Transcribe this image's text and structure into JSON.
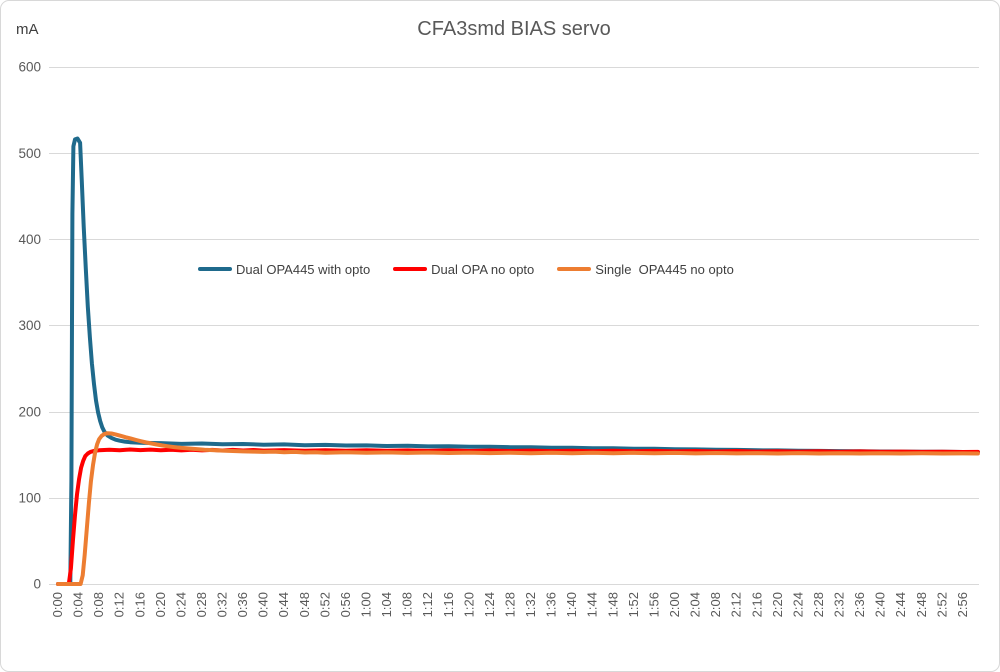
{
  "chart_data": {
    "type": "line",
    "title": "CFA3smd BIAS servo",
    "xlabel": "",
    "ylabel": "mA",
    "ylim": [
      0,
      600
    ],
    "y_ticks": [
      0,
      100,
      200,
      300,
      400,
      500,
      600
    ],
    "x_tick_interval_seconds": 4,
    "x_tick_labels": [
      "0:00",
      "0:04",
      "0:08",
      "0:12",
      "0:16",
      "0:20",
      "0:24",
      "0:28",
      "0:32",
      "0:36",
      "0:40",
      "0:44",
      "0:48",
      "0:52",
      "0:56",
      "1:00",
      "1:04",
      "1:08",
      "1:12",
      "1:16",
      "1:20",
      "1:24",
      "1:28",
      "1:32",
      "1:36",
      "1:40",
      "1:44",
      "1:48",
      "1:52",
      "1:56",
      "2:00",
      "2:04",
      "2:08",
      "2:12",
      "2:16",
      "2:20",
      "2:24",
      "2:28",
      "2:32",
      "2:36",
      "2:40",
      "2:44",
      "2:48",
      "2:52",
      "2:56"
    ],
    "grid": "horizontal",
    "legend_position": "inside-top-center",
    "series": [
      {
        "name": "Dual OPA445 with opto",
        "color": "#1f6a8c",
        "points": [
          [
            0,
            0
          ],
          [
            1,
            0
          ],
          [
            2,
            0
          ],
          [
            2.4,
            0
          ],
          [
            2.6,
            120
          ],
          [
            2.8,
            430
          ],
          [
            3,
            508
          ],
          [
            3.3,
            516
          ],
          [
            3.8,
            517
          ],
          [
            4.3,
            512
          ],
          [
            4.6,
            470
          ],
          [
            5,
            415
          ],
          [
            5.4,
            366
          ],
          [
            5.8,
            322
          ],
          [
            6.2,
            286
          ],
          [
            6.6,
            256
          ],
          [
            7,
            232
          ],
          [
            7.4,
            213
          ],
          [
            7.8,
            199
          ],
          [
            8.2,
            189
          ],
          [
            8.6,
            182
          ],
          [
            9,
            177
          ],
          [
            9.6,
            172.5
          ],
          [
            10.4,
            169.5
          ],
          [
            11.2,
            167.5
          ],
          [
            12,
            166.3
          ],
          [
            13,
            165.3
          ],
          [
            14,
            164.6
          ],
          [
            16,
            164
          ],
          [
            18,
            163.6
          ],
          [
            20,
            163.5
          ],
          [
            24,
            162.6
          ],
          [
            28,
            163.1
          ],
          [
            32,
            162.2
          ],
          [
            36,
            162.5
          ],
          [
            40,
            161.6
          ],
          [
            44,
            162
          ],
          [
            48,
            161.1
          ],
          [
            52,
            161.4
          ],
          [
            56,
            160.7
          ],
          [
            60,
            160.9
          ],
          [
            64,
            160.2
          ],
          [
            68,
            160.4
          ],
          [
            72,
            159.7
          ],
          [
            76,
            159.9
          ],
          [
            80,
            159.2
          ],
          [
            84,
            159.3
          ],
          [
            88,
            158.7
          ],
          [
            92,
            158.8
          ],
          [
            96,
            158.2
          ],
          [
            100,
            158.1
          ],
          [
            104,
            157.6
          ],
          [
            108,
            157.5
          ],
          [
            112,
            157
          ],
          [
            116,
            156.9
          ],
          [
            120,
            156.4
          ],
          [
            124,
            156.2
          ],
          [
            128,
            155.8
          ],
          [
            132,
            155.6
          ],
          [
            136,
            155.2
          ],
          [
            140,
            155
          ],
          [
            144,
            154.7
          ],
          [
            148,
            154.5
          ],
          [
            152,
            154.2
          ],
          [
            156,
            154.1
          ],
          [
            160,
            153.8
          ],
          [
            164,
            153.7
          ],
          [
            168,
            153.5
          ],
          [
            172,
            153.4
          ],
          [
            176,
            153.2
          ],
          [
            178.9,
            153.2
          ]
        ]
      },
      {
        "name": "Dual OPA no opto",
        "color": "#ff0000",
        "points": [
          [
            0,
            0
          ],
          [
            1,
            0
          ],
          [
            2.1,
            0
          ],
          [
            2.5,
            18
          ],
          [
            2.9,
            50
          ],
          [
            3.3,
            80
          ],
          [
            3.7,
            104
          ],
          [
            4.1,
            122
          ],
          [
            4.5,
            135
          ],
          [
            4.9,
            143
          ],
          [
            5.3,
            148.5
          ],
          [
            5.8,
            151.5
          ],
          [
            6.3,
            153.3
          ],
          [
            7,
            154.5
          ],
          [
            8,
            155.2
          ],
          [
            10,
            155.9
          ],
          [
            12,
            155.3
          ],
          [
            14,
            156.1
          ],
          [
            16,
            155.4
          ],
          [
            18,
            156
          ],
          [
            20,
            155.2
          ],
          [
            22,
            155.8
          ],
          [
            24,
            155.1
          ],
          [
            26,
            155.7
          ],
          [
            28,
            155
          ],
          [
            30,
            155.6
          ],
          [
            32,
            154.9
          ],
          [
            34,
            155.6
          ],
          [
            36,
            154.9
          ],
          [
            38,
            155.5
          ],
          [
            40,
            154.8
          ],
          [
            44,
            155.4
          ],
          [
            48,
            154.7
          ],
          [
            52,
            155.3
          ],
          [
            56,
            154.7
          ],
          [
            60,
            155.2
          ],
          [
            64,
            154.6
          ],
          [
            68,
            155.1
          ],
          [
            72,
            154.5
          ],
          [
            76,
            155
          ],
          [
            80,
            154.4
          ],
          [
            84,
            154.9
          ],
          [
            88,
            154.3
          ],
          [
            92,
            154.8
          ],
          [
            96,
            154.2
          ],
          [
            100,
            154.7
          ],
          [
            104,
            154.1
          ],
          [
            108,
            154.6
          ],
          [
            112,
            154
          ],
          [
            116,
            154.5
          ],
          [
            120,
            153.9
          ],
          [
            124,
            154.4
          ],
          [
            128,
            153.8
          ],
          [
            132,
            154.3
          ],
          [
            136,
            153.7
          ],
          [
            140,
            154.1
          ],
          [
            144,
            153.6
          ],
          [
            148,
            154
          ],
          [
            152,
            153.5
          ],
          [
            156,
            153.9
          ],
          [
            160,
            153.4
          ],
          [
            164,
            153.7
          ],
          [
            168,
            153.3
          ],
          [
            172,
            153.5
          ],
          [
            176,
            153.2
          ],
          [
            178.9,
            153.3
          ]
        ]
      },
      {
        "name": "Single  OPA445 no opto",
        "color": "#ed7d31",
        "points": [
          [
            0,
            0
          ],
          [
            2,
            0
          ],
          [
            4,
            0
          ],
          [
            4.4,
            0
          ],
          [
            4.8,
            10
          ],
          [
            5.2,
            34
          ],
          [
            5.6,
            64
          ],
          [
            6,
            94
          ],
          [
            6.4,
            119
          ],
          [
            6.8,
            138
          ],
          [
            7.2,
            152
          ],
          [
            7.6,
            162
          ],
          [
            8,
            168
          ],
          [
            8.5,
            172
          ],
          [
            9,
            174
          ],
          [
            9.6,
            175
          ],
          [
            10.4,
            174.6
          ],
          [
            11.2,
            173.6
          ],
          [
            12.2,
            172
          ],
          [
            13.2,
            170.3
          ],
          [
            14.2,
            168.7
          ],
          [
            15.2,
            167.1
          ],
          [
            16.2,
            165.6
          ],
          [
            17.2,
            164.2
          ],
          [
            18.2,
            163
          ],
          [
            19.2,
            161.9
          ],
          [
            20.2,
            160.9
          ],
          [
            21.4,
            159.8
          ],
          [
            22.6,
            158.9
          ],
          [
            24,
            158
          ],
          [
            25.5,
            157.2
          ],
          [
            27,
            156.5
          ],
          [
            28.5,
            155.9
          ],
          [
            30,
            155.4
          ],
          [
            32,
            154.8
          ],
          [
            34,
            154.3
          ],
          [
            36,
            153.9
          ],
          [
            38,
            153.6
          ],
          [
            40,
            153.3
          ],
          [
            42,
            153.6
          ],
          [
            44,
            152.9
          ],
          [
            46,
            153.3
          ],
          [
            48,
            152.6
          ],
          [
            50,
            153
          ],
          [
            52,
            152.4
          ],
          [
            56,
            152.9
          ],
          [
            60,
            152.2
          ],
          [
            64,
            152.7
          ],
          [
            68,
            152.1
          ],
          [
            72,
            152.6
          ],
          [
            76,
            152
          ],
          [
            80,
            152.5
          ],
          [
            84,
            151.9
          ],
          [
            88,
            152.4
          ],
          [
            92,
            151.8
          ],
          [
            96,
            152.3
          ],
          [
            100,
            151.8
          ],
          [
            104,
            152.2
          ],
          [
            108,
            151.7
          ],
          [
            112,
            152.2
          ],
          [
            116,
            151.7
          ],
          [
            120,
            152.1
          ],
          [
            124,
            151.6
          ],
          [
            128,
            152
          ],
          [
            132,
            151.6
          ],
          [
            136,
            151.9
          ],
          [
            140,
            151.5
          ],
          [
            144,
            151.9
          ],
          [
            148,
            151.5
          ],
          [
            152,
            151.8
          ],
          [
            156,
            151.4
          ],
          [
            160,
            151.8
          ],
          [
            164,
            151.4
          ],
          [
            168,
            151.7
          ],
          [
            172,
            151.4
          ],
          [
            176,
            151.6
          ],
          [
            178.9,
            151.5
          ]
        ]
      }
    ]
  },
  "colors": {
    "grid": "#d9d9d9",
    "axis_text": "#595959",
    "title_text": "#595959",
    "legend_text": "#3f3f3f",
    "frame_border": "#d8d8d8",
    "background": "#ffffff"
  }
}
